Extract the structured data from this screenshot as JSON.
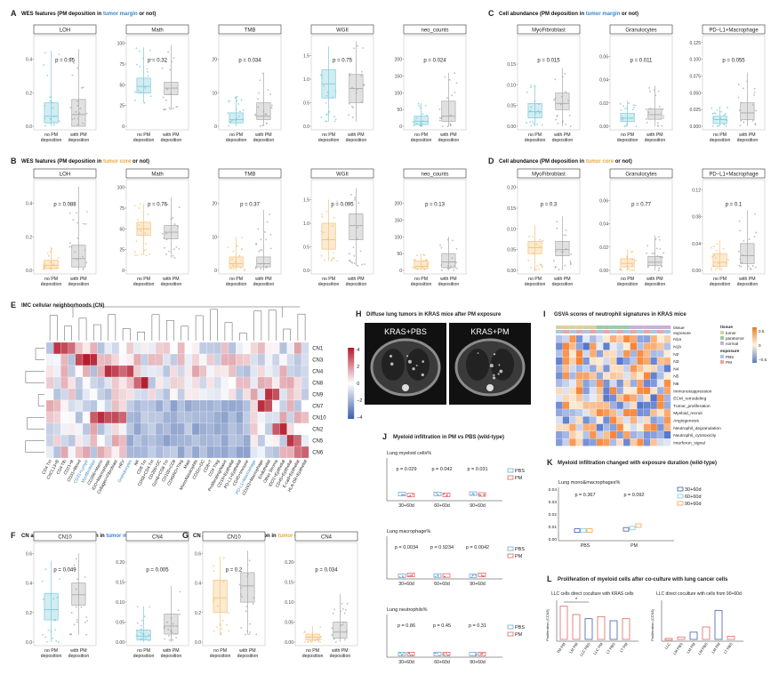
{
  "colors": {
    "teal": "#7fcad9",
    "teal_dark": "#4fb3c8",
    "grey": "#a9a9a9",
    "orange": "#f5c27a",
    "orange_dark": "#e9a53f",
    "pbs": "#6fa8dc",
    "pm": "#e06666",
    "blue_hm": "#3b5fa8",
    "red_hm": "#b2182b"
  },
  "panels": {
    "A": {
      "letter": "A",
      "title_pre": "WES features (PM deposition in ",
      "title_hl": "tumor margin",
      "title_post": " or not)"
    },
    "B": {
      "letter": "B",
      "title_pre": "WES features (PM deposition in ",
      "title_hl": "tumor core",
      "title_post": " or not)"
    },
    "C": {
      "letter": "C",
      "title_pre": "Cell abundance (PM deposition in ",
      "title_hl": "tumor margin",
      "title_post": " or not)"
    },
    "D": {
      "letter": "D",
      "title_pre": "Cell abundance (PM deposition in ",
      "title_hl": "tumor core",
      "title_post": " or not)"
    },
    "E": {
      "letter": "E",
      "title": "IMC cellular neighborhoods (CN)"
    },
    "F": {
      "letter": "F",
      "title_pre": "CN abundance (PM deposition in ",
      "title_hl": "tumor margin",
      "title_post": " or not)"
    },
    "G": {
      "letter": "G",
      "title_pre": "CN abundance (PM deposition in ",
      "title_hl": "tumor core",
      "title_post": " or not)"
    },
    "H": {
      "letter": "H",
      "title": "Diffuse lung tumors in KRAS mice after PM exposure",
      "img1": "KRAS+PBS",
      "img2": "KRAS+PM"
    },
    "I": {
      "letter": "I",
      "title": "GSVA scores of neutrophil signatures in KRAS mice"
    },
    "J": {
      "letter": "J",
      "title": "Myeloid infiltration in PM vs PBS (wild-type)"
    },
    "K": {
      "letter": "K",
      "title": "Myeloid infiltration changed with exposure duration (wild-type)"
    },
    "L": {
      "letter": "L",
      "title": "Proliferation of myeloid cells after co-culture with lung cancer cells"
    }
  },
  "groups": {
    "no": [
      "no PM",
      "deposition"
    ],
    "with": [
      "with PM",
      "deposition"
    ]
  },
  "chart_data": [
    {
      "id": "A",
      "type": "box",
      "facets": [
        {
          "title": "LOH",
          "p": "p = 0.95",
          "ticks": [
            "0.0",
            "0.2",
            "0.4"
          ],
          "ymax": 0.52,
          "no": [
            0.0,
            0.02,
            0.06,
            0.14,
            0.45
          ],
          "with": [
            0.0,
            0.0,
            0.07,
            0.16,
            0.46
          ]
        },
        {
          "title": "Math",
          "p": "p = 0.32",
          "ticks": [
            "0",
            "25",
            "50",
            "75",
            "100"
          ],
          "ymax": 105,
          "no": [
            28,
            40,
            48,
            58,
            95
          ],
          "with": [
            20,
            38,
            46,
            53,
            98
          ]
        },
        {
          "title": "TMB",
          "p": "p = 0.034",
          "ticks": [
            "0",
            "10",
            "20"
          ],
          "ymax": 26,
          "no": [
            0,
            1,
            2,
            4,
            9
          ],
          "with": [
            0,
            2,
            3,
            7,
            16
          ]
        },
        {
          "title": "WGII",
          "p": "p = 0.75",
          "ticks": [
            "0.0",
            "0.5",
            "1.0",
            "1.5"
          ],
          "ymax": 1.85,
          "no": [
            0.1,
            0.6,
            0.9,
            1.2,
            1.7
          ],
          "with": [
            0.1,
            0.5,
            0.8,
            1.1,
            1.8
          ]
        },
        {
          "title": "neo_counts",
          "p": "p = 0.024",
          "ticks": [
            "0",
            "50",
            "100",
            "150",
            "200"
          ],
          "ymax": 260,
          "no": [
            0,
            5,
            15,
            30,
            70
          ],
          "with": [
            0,
            15,
            30,
            75,
            160
          ]
        }
      ]
    },
    {
      "id": "B",
      "type": "box",
      "facets": [
        {
          "title": "LOH",
          "p": "p = 0.088",
          "ticks": [
            "0.0",
            "0.2",
            "0.4"
          ],
          "ymax": 0.52,
          "no": [
            0.0,
            0.01,
            0.03,
            0.06,
            0.14
          ],
          "with": [
            0.0,
            0.02,
            0.07,
            0.15,
            0.5
          ]
        },
        {
          "title": "Math",
          "p": "p = 0.76",
          "ticks": [
            "0",
            "25",
            "50",
            "75",
            "100"
          ],
          "ymax": 105,
          "no": [
            18,
            42,
            50,
            58,
            80
          ],
          "with": [
            15,
            38,
            46,
            54,
            88
          ]
        },
        {
          "title": "TMB",
          "p": "p = 0.37",
          "ticks": [
            "0",
            "10",
            "20"
          ],
          "ymax": 26,
          "no": [
            0,
            1,
            2,
            4,
            10
          ],
          "with": [
            0,
            1,
            2,
            4,
            18
          ]
        },
        {
          "title": "WGII",
          "p": "p = 0.095",
          "ticks": [
            "0.0",
            "0.5",
            "1.0",
            "1.5"
          ],
          "ymax": 1.85,
          "no": [
            0.2,
            0.45,
            0.65,
            1.0,
            1.5
          ],
          "with": [
            0.1,
            0.65,
            0.95,
            1.2,
            1.75
          ]
        },
        {
          "title": "neo_counts",
          "p": "p = 0.13",
          "ticks": [
            "0",
            "50",
            "100",
            "150",
            "200"
          ],
          "ymax": 260,
          "no": [
            0,
            5,
            12,
            28,
            50
          ],
          "with": [
            0,
            8,
            25,
            50,
            100
          ]
        }
      ]
    },
    {
      "id": "C",
      "type": "box",
      "facets": [
        {
          "title": "MyoFibroblast",
          "p": "p = 0.015",
          "ticks": [
            "0.00",
            "0.05",
            "0.10",
            "0.15"
          ],
          "ymax": 0.21,
          "no": [
            0.0,
            0.02,
            0.035,
            0.055,
            0.1
          ],
          "with": [
            0.0,
            0.04,
            0.055,
            0.08,
            0.14
          ]
        },
        {
          "title": "Granulocytes",
          "p": "p = 0.011",
          "ticks": [
            "0.00",
            "0.02",
            "0.04",
            "0.06"
          ],
          "ymax": 0.075,
          "no": [
            0.0,
            0.004,
            0.007,
            0.011,
            0.022
          ],
          "with": [
            0.0,
            0.006,
            0.01,
            0.015,
            0.035
          ]
        },
        {
          "title": "PD−L1+Macrophage",
          "p": "p = 0.055",
          "ticks": [
            "0.000",
            "0.025",
            "0.050",
            "0.075",
            "0.100",
            "0.125"
          ],
          "ymax": 0.13,
          "no": [
            0.0,
            0.004,
            0.01,
            0.015,
            0.03
          ],
          "with": [
            0.0,
            0.01,
            0.02,
            0.035,
            0.08
          ]
        }
      ]
    },
    {
      "id": "D",
      "type": "box",
      "facets": [
        {
          "title": "MyoFibroblast",
          "p": "p = 0.3",
          "ticks": [
            "0.00",
            "0.05",
            "0.10",
            "0.15",
            "0.20"
          ],
          "ymax": 0.21,
          "no": [
            0.0,
            0.04,
            0.055,
            0.07,
            0.11
          ],
          "with": [
            0.0,
            0.035,
            0.05,
            0.07,
            0.13
          ]
        },
        {
          "title": "Granulocytes",
          "p": "p = 0.77",
          "ticks": [
            "0.00",
            "0.02",
            "0.04",
            "0.06"
          ],
          "ymax": 0.075,
          "no": [
            0.0,
            0.003,
            0.006,
            0.01,
            0.018
          ],
          "with": [
            0.0,
            0.004,
            0.007,
            0.012,
            0.03
          ]
        },
        {
          "title": "PD−L1+Macrophage",
          "p": "p = 0.1",
          "ticks": [
            "0.00",
            "0.04",
            "0.08",
            "0.12"
          ],
          "ymax": 0.13,
          "no": [
            0.0,
            0.006,
            0.012,
            0.025,
            0.045
          ],
          "with": [
            0.0,
            0.01,
            0.022,
            0.04,
            0.09
          ]
        }
      ]
    },
    {
      "id": "F",
      "type": "box",
      "facets": [
        {
          "title": "CN10",
          "p": "p = 0.049",
          "ticks": [
            "0.0",
            "0.2",
            "0.4",
            "0.6"
          ],
          "ymax": 0.65,
          "no": [
            0.0,
            0.15,
            0.22,
            0.33,
            0.55
          ],
          "with": [
            0.05,
            0.25,
            0.32,
            0.4,
            0.6
          ]
        },
        {
          "title": "CN4",
          "p": "p = 0.005",
          "ticks": [
            "0.00",
            "0.05",
            "0.10",
            "0.15",
            "0.20"
          ],
          "ymax": 0.24,
          "no": [
            0.0,
            0.005,
            0.015,
            0.03,
            0.09
          ],
          "with": [
            0.0,
            0.02,
            0.04,
            0.07,
            0.14
          ]
        }
      ]
    },
    {
      "id": "G",
      "type": "box",
      "facets": [
        {
          "title": "CN10",
          "p": "p = 0.2",
          "ticks": [
            "0.0",
            "0.2",
            "0.4",
            "0.6"
          ],
          "ymax": 0.65,
          "no": [
            0.05,
            0.2,
            0.3,
            0.42,
            0.58
          ],
          "with": [
            0.05,
            0.27,
            0.38,
            0.47,
            0.62
          ]
        },
        {
          "title": "CN4",
          "p": "p = 0.034",
          "ticks": [
            "0.00",
            "0.05",
            "0.10",
            "0.15",
            "0.20"
          ],
          "ymax": 0.24,
          "no": [
            0.0,
            0.005,
            0.012,
            0.02,
            0.04
          ],
          "with": [
            0.0,
            0.01,
            0.025,
            0.05,
            0.12
          ]
        }
      ]
    }
  ],
  "heatmap": {
    "rows": [
      "CN1",
      "CN3",
      "CN4",
      "CN8",
      "CN9",
      "CN7",
      "CN10",
      "CN2",
      "CN5",
      "CN6"
    ],
    "cols": [
      "CD4 Tm",
      "CXCL13+B",
      "CD4 Tfh",
      "CD21+B",
      "CD31+Blood",
      "CD31+Lymph",
      "Myofibroblast",
      "CD206+Macro",
      "IDO+Macrophage",
      "Collagen+Fibroblast",
      "HEV",
      "Granulocytes",
      "NK",
      "CD8 Tm",
      "CD68+CD4 Tm",
      "CD206+DC",
      "Gzmb+CD8 Tm",
      "CD103+CD8",
      "CD45RO+Treg",
      "Mast",
      "Mono/Neutrophils",
      "CD11c+DC",
      "CD8+T",
      "CD4 Treg",
      "Proliferating/Naive",
      "CD16+Epithelial",
      "PD-L1+Epithelial",
      "CD45+Immune",
      "PD-L1+Macrophage",
      "CD163+Macrophage",
      "Endothelial",
      "Other Stroma",
      "IDO1+Epithelial",
      "CD45+Epithelial",
      "E-cad+Epithelial",
      "HLA-DR+Epithelial"
    ],
    "legend": [
      "4",
      "2",
      "0",
      "−2",
      "−4"
    ]
  },
  "gsva": {
    "rows": [
      "N1a",
      "N1b",
      "N2",
      "N3",
      "N4",
      "N5",
      "N6",
      "Immunosuppression",
      "ECM_remodeling",
      "Tumor_proliferation",
      "Myeloid_recruit",
      "Angiogenesis",
      "Neutrophil_degranulation",
      "Neutrophil_cytotoxicity",
      "Interferon_signal"
    ],
    "legend_tissue": "tissue",
    "tissue": [
      "tumor",
      "paratumor",
      "normal"
    ],
    "legend_exposure": "exposure",
    "exposure": [
      "PBS",
      "PM"
    ],
    "scale": [
      "0.5",
      "0",
      "−0.5"
    ],
    "hdr_tissue": "tissue",
    "hdr_exposure": "exposure"
  },
  "j_charts": [
    {
      "title": "Lung myeloid cells%",
      "p": [
        "p = 0.029",
        "p = 0.042",
        "p = 0.031"
      ],
      "pbs": [
        0.4,
        0.42,
        0.45
      ],
      "pm": [
        0.3,
        0.33,
        0.36
      ]
    },
    {
      "title": "Lung macrophage%",
      "p": [
        "p = 0.0034",
        "p = 0.9234",
        "p = 0.0042"
      ],
      "pbs": [
        0.06,
        0.07,
        0.06
      ],
      "pm": [
        0.14,
        0.08,
        0.15
      ]
    },
    {
      "title": "Lung neutrophils%",
      "p": [
        "p = 0.86",
        "p = 0.45",
        "p = 0.31"
      ],
      "pbs": [
        0.05,
        0.05,
        0.05
      ],
      "pm": [
        0.05,
        0.05,
        0.05
      ]
    }
  ],
  "j_x": [
    "30+60d",
    "60+60d",
    "90+60d"
  ],
  "j_legend": [
    "PBS",
    "PM"
  ],
  "k_chart": {
    "title": "Lung mono&macrophages%",
    "p": [
      "p = 0.367",
      "p = 0.092"
    ],
    "x": [
      "PBS",
      "PM"
    ],
    "ticks": [
      "0.00",
      "0.01",
      "0.02",
      "0.03",
      "0.04"
    ],
    "legend": [
      "30+60d",
      "60+60d",
      "90+60d"
    ],
    "values": [
      [
        0.006,
        0.006,
        0.006
      ],
      [
        0.007,
        0.008,
        0.01
      ]
    ]
  },
  "l_charts": [
    {
      "title": "LLC cells direct coculture with KRAS cells",
      "ylabel": "Proliferation (CCK8)",
      "sig": "*",
      "x": [
        "TM PM",
        "LM PM",
        "LLC PBS",
        "LLC PM",
        "LT PBS",
        "LT PM"
      ],
      "values": [
        1.6,
        1.2,
        1.0,
        1.1,
        0.9,
        1.0
      ]
    },
    {
      "title": "LLC direct coculture with cells from 90+60d",
      "ylabel": "Proliferation (CCK8)",
      "x": [
        "LLC",
        "LM PBS",
        "LM PM",
        "LM PBS",
        "LM PM",
        "LT PBS"
      ],
      "values": [
        0.05,
        0.12,
        0.35,
        0.6,
        1.4,
        0.15
      ]
    }
  ]
}
